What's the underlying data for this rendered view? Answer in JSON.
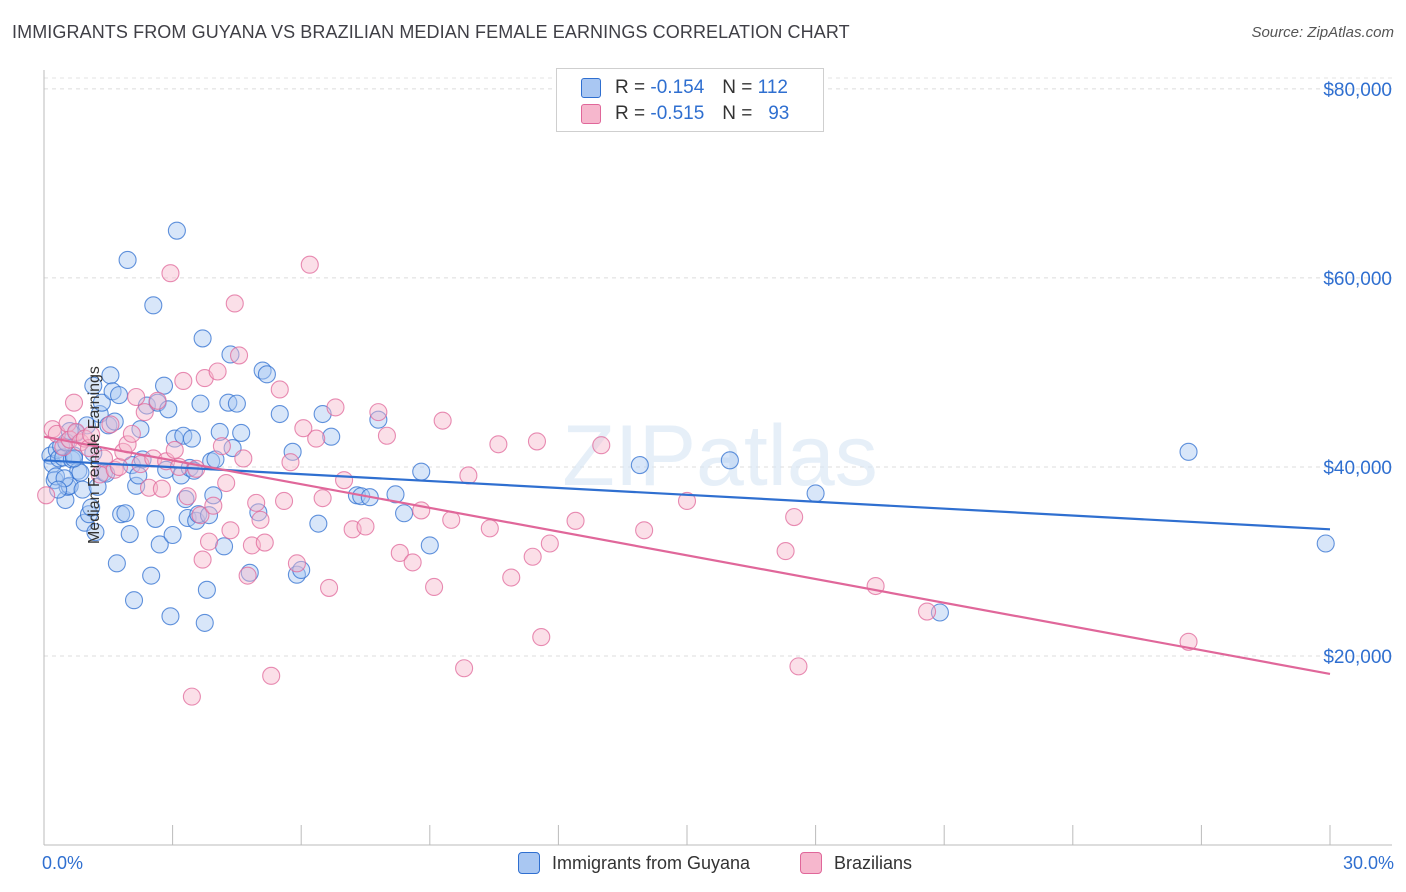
{
  "title": "IMMIGRANTS FROM GUYANA VS BRAZILIAN MEDIAN FEMALE EARNINGS CORRELATION CHART",
  "source": "Source: ZipAtlas.com",
  "watermark": "ZIPatlas",
  "colors": {
    "blue": "#2f6fd0",
    "blue_fill": "#a9c7f2",
    "pink": "#e0679a",
    "pink_fill": "#f6b7cd"
  },
  "legend_top": [
    {
      "r_label": "R =",
      "r_value": "-0.154",
      "n_label": "N =",
      "n_value": "112"
    },
    {
      "r_label": "R =",
      "r_value": "-0.515",
      "n_label": "N =",
      "n_value": "93"
    }
  ],
  "legend_bottom": [
    "Immigrants from Guyana",
    "Brazilians"
  ],
  "x_tick_labels": {
    "left": "0.0%",
    "right": "30.0%"
  },
  "chart_data": {
    "type": "scatter",
    "title": "IMMIGRANTS FROM GUYANA VS BRAZILIAN MEDIAN FEMALE EARNINGS CORRELATION CHART",
    "xlabel": "",
    "ylabel": "Median Female Earnings",
    "xlim": [
      0,
      30
    ],
    "ylim": [
      0,
      82000
    ],
    "y_ticks": [
      {
        "value": 20000,
        "label": "$20,000"
      },
      {
        "value": 40000,
        "label": "$40,000"
      },
      {
        "value": 60000,
        "label": "$60,000"
      },
      {
        "value": 80000,
        "label": "$80,000"
      }
    ],
    "grid": true,
    "legend_position": "top-center",
    "series": [
      {
        "name": "Immigrants from Guyana",
        "color": "#2f6fd0",
        "trend": {
          "x": [
            0,
            30
          ],
          "y": [
            40700,
            33400
          ]
        },
        "points": [
          [
            0.15,
            41200
          ],
          [
            0.2,
            40300
          ],
          [
            0.25,
            38600
          ],
          [
            0.3,
            41800
          ],
          [
            0.35,
            40900
          ],
          [
            0.4,
            42200
          ],
          [
            0.45,
            41000
          ],
          [
            0.5,
            36500
          ],
          [
            0.55,
            37900
          ],
          [
            0.6,
            38000
          ],
          [
            0.65,
            40800
          ],
          [
            0.7,
            41200
          ],
          [
            0.75,
            43600
          ],
          [
            0.8,
            39600
          ],
          [
            0.85,
            39400
          ],
          [
            0.9,
            37600
          ],
          [
            0.95,
            34100
          ],
          [
            1.0,
            44400
          ],
          [
            1.05,
            35000
          ],
          [
            1.1,
            35700
          ],
          [
            1.15,
            48600
          ],
          [
            1.2,
            33100
          ],
          [
            1.25,
            37900
          ],
          [
            1.3,
            45600
          ],
          [
            1.35,
            46800
          ],
          [
            1.4,
            39400
          ],
          [
            1.45,
            39300
          ],
          [
            1.5,
            44400
          ],
          [
            1.55,
            49700
          ],
          [
            1.6,
            48000
          ],
          [
            1.65,
            44800
          ],
          [
            1.7,
            29800
          ],
          [
            1.75,
            47600
          ],
          [
            1.8,
            35000
          ],
          [
            1.9,
            35100
          ],
          [
            1.95,
            61900
          ],
          [
            2.0,
            32900
          ],
          [
            2.05,
            40200
          ],
          [
            2.1,
            25900
          ],
          [
            2.15,
            38000
          ],
          [
            2.2,
            39100
          ],
          [
            2.25,
            44000
          ],
          [
            2.3,
            40800
          ],
          [
            2.4,
            46500
          ],
          [
            2.5,
            28500
          ],
          [
            2.55,
            57100
          ],
          [
            2.6,
            34500
          ],
          [
            2.65,
            46800
          ],
          [
            2.7,
            31800
          ],
          [
            2.8,
            48600
          ],
          [
            2.85,
            39700
          ],
          [
            2.9,
            46100
          ],
          [
            2.95,
            24200
          ],
          [
            3.0,
            32800
          ],
          [
            3.05,
            43000
          ],
          [
            3.1,
            65000
          ],
          [
            3.2,
            39100
          ],
          [
            3.25,
            43300
          ],
          [
            3.3,
            36600
          ],
          [
            3.35,
            34600
          ],
          [
            3.4,
            39900
          ],
          [
            3.45,
            43000
          ],
          [
            3.5,
            39600
          ],
          [
            3.55,
            34300
          ],
          [
            3.6,
            35000
          ],
          [
            3.65,
            46700
          ],
          [
            3.7,
            53600
          ],
          [
            3.75,
            23500
          ],
          [
            3.8,
            27000
          ],
          [
            3.85,
            34900
          ],
          [
            3.9,
            40600
          ],
          [
            3.95,
            37000
          ],
          [
            4.0,
            40800
          ],
          [
            4.1,
            43700
          ],
          [
            4.2,
            31600
          ],
          [
            4.3,
            46800
          ],
          [
            4.35,
            51900
          ],
          [
            4.4,
            42000
          ],
          [
            4.5,
            46700
          ],
          [
            4.6,
            43600
          ],
          [
            4.8,
            28800
          ],
          [
            5.0,
            35200
          ],
          [
            5.1,
            50200
          ],
          [
            5.2,
            49800
          ],
          [
            5.5,
            45600
          ],
          [
            5.8,
            41600
          ],
          [
            5.9,
            28600
          ],
          [
            6.0,
            29100
          ],
          [
            6.4,
            34000
          ],
          [
            6.5,
            45600
          ],
          [
            6.7,
            43200
          ],
          [
            7.3,
            37000
          ],
          [
            7.4,
            36900
          ],
          [
            7.6,
            36800
          ],
          [
            7.8,
            45000
          ],
          [
            8.2,
            37100
          ],
          [
            8.4,
            35100
          ],
          [
            8.8,
            39500
          ],
          [
            9.0,
            31700
          ],
          [
            13.9,
            40200
          ],
          [
            16.0,
            40700
          ],
          [
            18.0,
            37200
          ],
          [
            20.9,
            24600
          ],
          [
            26.7,
            41600
          ],
          [
            29.9,
            31900
          ],
          [
            0.28,
            39000
          ],
          [
            0.52,
            42600
          ],
          [
            0.7,
            40900
          ],
          [
            1.15,
            41500
          ],
          [
            0.48,
            38800
          ],
          [
            0.33,
            37600
          ],
          [
            0.6,
            43800
          ]
        ]
      },
      {
        "name": "Brazilians",
        "color": "#e0679a",
        "trend": {
          "x": [
            0,
            30
          ],
          "y": [
            43200,
            18100
          ]
        },
        "points": [
          [
            0.05,
            37000
          ],
          [
            0.2,
            44000
          ],
          [
            0.3,
            43500
          ],
          [
            0.45,
            42100
          ],
          [
            0.55,
            44600
          ],
          [
            0.6,
            42900
          ],
          [
            0.7,
            46800
          ],
          [
            0.75,
            43700
          ],
          [
            0.85,
            42600
          ],
          [
            0.95,
            43000
          ],
          [
            1.05,
            42000
          ],
          [
            1.1,
            43400
          ],
          [
            1.3,
            39200
          ],
          [
            1.4,
            40900
          ],
          [
            1.55,
            44500
          ],
          [
            1.65,
            39700
          ],
          [
            1.75,
            40000
          ],
          [
            1.85,
            41600
          ],
          [
            1.95,
            42400
          ],
          [
            2.05,
            43500
          ],
          [
            2.15,
            47400
          ],
          [
            2.25,
            40300
          ],
          [
            2.35,
            45800
          ],
          [
            2.45,
            37800
          ],
          [
            2.55,
            40900
          ],
          [
            2.65,
            47000
          ],
          [
            2.75,
            37700
          ],
          [
            2.85,
            40600
          ],
          [
            2.95,
            60500
          ],
          [
            3.05,
            41800
          ],
          [
            3.15,
            40000
          ],
          [
            3.25,
            49100
          ],
          [
            3.35,
            36900
          ],
          [
            3.45,
            15700
          ],
          [
            3.55,
            39800
          ],
          [
            3.65,
            34900
          ],
          [
            3.75,
            49400
          ],
          [
            3.85,
            32100
          ],
          [
            3.95,
            35900
          ],
          [
            4.05,
            50100
          ],
          [
            4.15,
            42200
          ],
          [
            4.25,
            38300
          ],
          [
            4.35,
            33300
          ],
          [
            4.45,
            57300
          ],
          [
            4.55,
            51800
          ],
          [
            4.65,
            40900
          ],
          [
            4.75,
            28500
          ],
          [
            4.85,
            31700
          ],
          [
            4.95,
            36200
          ],
          [
            5.05,
            34400
          ],
          [
            5.15,
            32000
          ],
          [
            5.3,
            17900
          ],
          [
            5.5,
            48200
          ],
          [
            5.6,
            36400
          ],
          [
            5.75,
            40500
          ],
          [
            5.9,
            29800
          ],
          [
            6.05,
            44100
          ],
          [
            6.2,
            61400
          ],
          [
            6.35,
            43000
          ],
          [
            6.5,
            36700
          ],
          [
            6.65,
            27200
          ],
          [
            6.8,
            46300
          ],
          [
            7.0,
            38600
          ],
          [
            7.2,
            33400
          ],
          [
            7.5,
            33700
          ],
          [
            7.8,
            45800
          ],
          [
            8.0,
            43300
          ],
          [
            8.3,
            30900
          ],
          [
            8.6,
            29900
          ],
          [
            8.8,
            35400
          ],
          [
            9.1,
            27300
          ],
          [
            9.3,
            44900
          ],
          [
            9.5,
            34400
          ],
          [
            9.8,
            18700
          ],
          [
            9.9,
            39100
          ],
          [
            10.4,
            33500
          ],
          [
            10.6,
            42400
          ],
          [
            10.9,
            28300
          ],
          [
            11.4,
            30500
          ],
          [
            11.5,
            42700
          ],
          [
            11.6,
            22000
          ],
          [
            11.8,
            31900
          ],
          [
            12.4,
            34300
          ],
          [
            13.0,
            42300
          ],
          [
            14.0,
            33300
          ],
          [
            15.0,
            36400
          ],
          [
            17.3,
            31100
          ],
          [
            17.5,
            34700
          ],
          [
            17.6,
            18900
          ],
          [
            19.4,
            27400
          ],
          [
            20.6,
            24700
          ],
          [
            26.7,
            21500
          ],
          [
            3.7,
            30200
          ]
        ]
      }
    ]
  }
}
